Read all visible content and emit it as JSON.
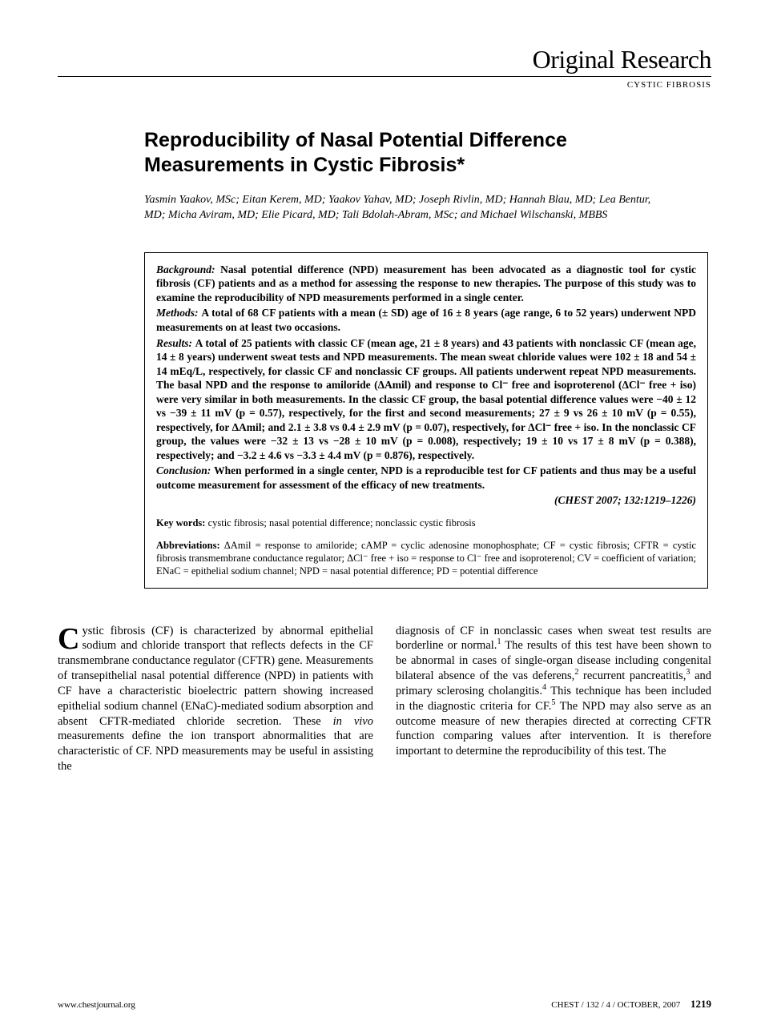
{
  "header": {
    "section": "Original Research",
    "subsection": "CYSTIC FIBROSIS"
  },
  "article": {
    "title": "Reproducibility of Nasal Potential Difference Measurements in Cystic Fibrosis*",
    "authors": "Yasmin Yaakov, MSc; Eitan Kerem, MD; Yaakov Yahav, MD; Joseph Rivlin, MD; Hannah Blau, MD; Lea Bentur, MD; Micha Aviram, MD; Elie Picard, MD; Tali Bdolah-Abram, MSc; and Michael Wilschanski, MBBS"
  },
  "abstract": {
    "background": {
      "label": "Background:",
      "text": "Nasal potential difference (NPD) measurement has been advocated as a diagnostic tool for cystic fibrosis (CF) patients and as a method for assessing the response to new therapies. The purpose of this study was to examine the reproducibility of NPD measurements performed in a single center."
    },
    "methods": {
      "label": "Methods:",
      "text": "A total of 68 CF patients with a mean (± SD) age of 16 ± 8 years (age range, 6 to 52 years) underwent NPD measurements on at least two occasions."
    },
    "results": {
      "label": "Results:",
      "text": "A total of 25 patients with classic CF (mean age, 21 ± 8 years) and 43 patients with nonclassic CF (mean age, 14 ± 8 years) underwent sweat tests and NPD measurements. The mean sweat chloride values were 102 ± 18 and 54 ± 14 mEq/L, respectively, for classic CF and nonclassic CF groups. All patients underwent repeat NPD measurements. The basal NPD and the response to amiloride (ΔAmil) and response to Cl⁻ free and isoproterenol (ΔCl⁻ free + iso) were very similar in both measurements. In the classic CF group, the basal potential difference values were −40 ± 12 vs −39 ± 11 mV (p = 0.57), respectively, for the first and second measurements; 27 ± 9 vs 26 ± 10 mV (p = 0.55), respectively, for ΔAmil; and 2.1 ± 3.8 vs 0.4 ± 2.9 mV (p = 0.07), respectively, for ΔCl⁻ free + iso. In the nonclassic CF group, the values were −32 ± 13 vs −28 ± 10 mV (p = 0.008), respectively; 19 ± 10 vs 17 ± 8 mV (p = 0.388), respectively; and −3.2 ± 4.6 vs −3.3 ± 4.4 mV (p = 0.876), respectively."
    },
    "conclusion": {
      "label": "Conclusion:",
      "text": "When performed in a single center, NPD is a reproducible test for CF patients and thus may be a useful outcome measurement for assessment of the efficacy of new treatments."
    },
    "citation": "(CHEST 2007; 132:1219–1226)",
    "keywords": {
      "label": "Key words:",
      "text": " cystic fibrosis; nasal potential difference; nonclassic cystic fibrosis"
    },
    "abbreviations": {
      "label": "Abbreviations:",
      "text": " ΔAmil = response to amiloride; cAMP = cyclic adenosine monophosphate; CF = cystic fibrosis; CFTR = cystic fibrosis transmembrane conductance regulator; ΔCl⁻ free + iso = response to Cl⁻ free and isoproterenol; CV = coefficient of variation; ENaC = epithelial sodium channel; NPD = nasal potential difference; PD = potential difference"
    }
  },
  "body": {
    "col1_dropcap": "C",
    "col1_first": "ystic fibrosis (CF) is characterized by abnormal epithelial sodium and chloride transport that reflects defects in the CF transmembrane conductance regulator (CFTR) gene. Measurements of transepithelial nasal potential difference (NPD) in patients with CF have a characteristic bioelectric pattern showing increased epithelial sodium channel (ENaC)-mediated sodium absorption and absent CFTR-mediated chloride secretion. These ",
    "col1_italic": "in vivo",
    "col1_rest": " measurements define the ion transport abnormalities that are characteristic of CF. NPD measurements may be useful in assisting the",
    "col2_a": "diagnosis of CF in nonclassic cases when sweat test results are borderline or normal.",
    "col2_sup1": "1",
    "col2_b": " The results of this test have been shown to be abnormal in cases of single-organ disease including congenital bilateral absence of the vas deferens,",
    "col2_sup2": "2",
    "col2_c": " recurrent pancreatitis,",
    "col2_sup3": "3",
    "col2_d": " and primary sclerosing cholangitis.",
    "col2_sup4": "4",
    "col2_e": " This technique has been included in the diagnostic criteria for CF.",
    "col2_sup5": "5",
    "col2_f": " The NPD may also serve as an outcome measure of new therapies directed at correcting CFTR function comparing values after intervention. It is therefore important to determine the reproducibility of this test. The"
  },
  "footer": {
    "url": "www.chestjournal.org",
    "issue": "CHEST / 132 / 4 / OCTOBER, 2007",
    "page": "1219"
  }
}
